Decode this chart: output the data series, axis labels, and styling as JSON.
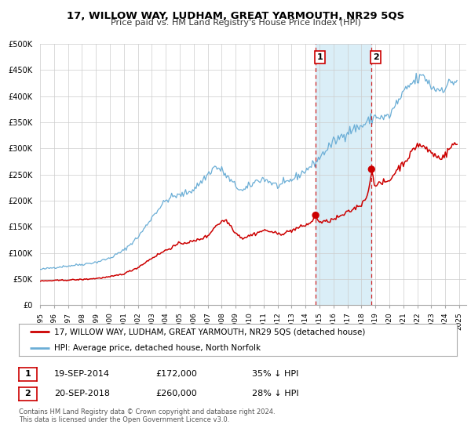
{
  "title": "17, WILLOW WAY, LUDHAM, GREAT YARMOUTH, NR29 5QS",
  "subtitle": "Price paid vs. HM Land Registry's House Price Index (HPI)",
  "ylim": [
    0,
    500000
  ],
  "xlim_start": 1995.0,
  "xlim_end": 2025.5,
  "yticks": [
    0,
    50000,
    100000,
    150000,
    200000,
    250000,
    300000,
    350000,
    400000,
    450000,
    500000
  ],
  "ytick_labels": [
    "£0",
    "£50K",
    "£100K",
    "£150K",
    "£200K",
    "£250K",
    "£300K",
    "£350K",
    "£400K",
    "£450K",
    "£500K"
  ],
  "xticks": [
    1995,
    1996,
    1997,
    1998,
    1999,
    2000,
    2001,
    2002,
    2003,
    2004,
    2005,
    2006,
    2007,
    2008,
    2009,
    2010,
    2011,
    2012,
    2013,
    2014,
    2015,
    2016,
    2017,
    2018,
    2019,
    2020,
    2021,
    2022,
    2023,
    2024,
    2025
  ],
  "hpi_color": "#6baed6",
  "sale_color": "#cc0000",
  "sale1_x": 2014.72,
  "sale1_y": 172000,
  "sale2_x": 2018.72,
  "sale2_y": 260000,
  "vline1_x": 2014.72,
  "vline2_x": 2018.72,
  "shade_color": "#daeef7",
  "legend_label1": "17, WILLOW WAY, LUDHAM, GREAT YARMOUTH, NR29 5QS (detached house)",
  "legend_label2": "HPI: Average price, detached house, North Norfolk",
  "ann1_label": "1",
  "ann2_label": "2",
  "ann1_date": "19-SEP-2014",
  "ann1_price": "£172,000",
  "ann1_hpi": "35% ↓ HPI",
  "ann2_date": "20-SEP-2018",
  "ann2_price": "£260,000",
  "ann2_hpi": "28% ↓ HPI",
  "footer1": "Contains HM Land Registry data © Crown copyright and database right 2024.",
  "footer2": "This data is licensed under the Open Government Licence v3.0.",
  "background_color": "#ffffff",
  "grid_color": "#cccccc"
}
